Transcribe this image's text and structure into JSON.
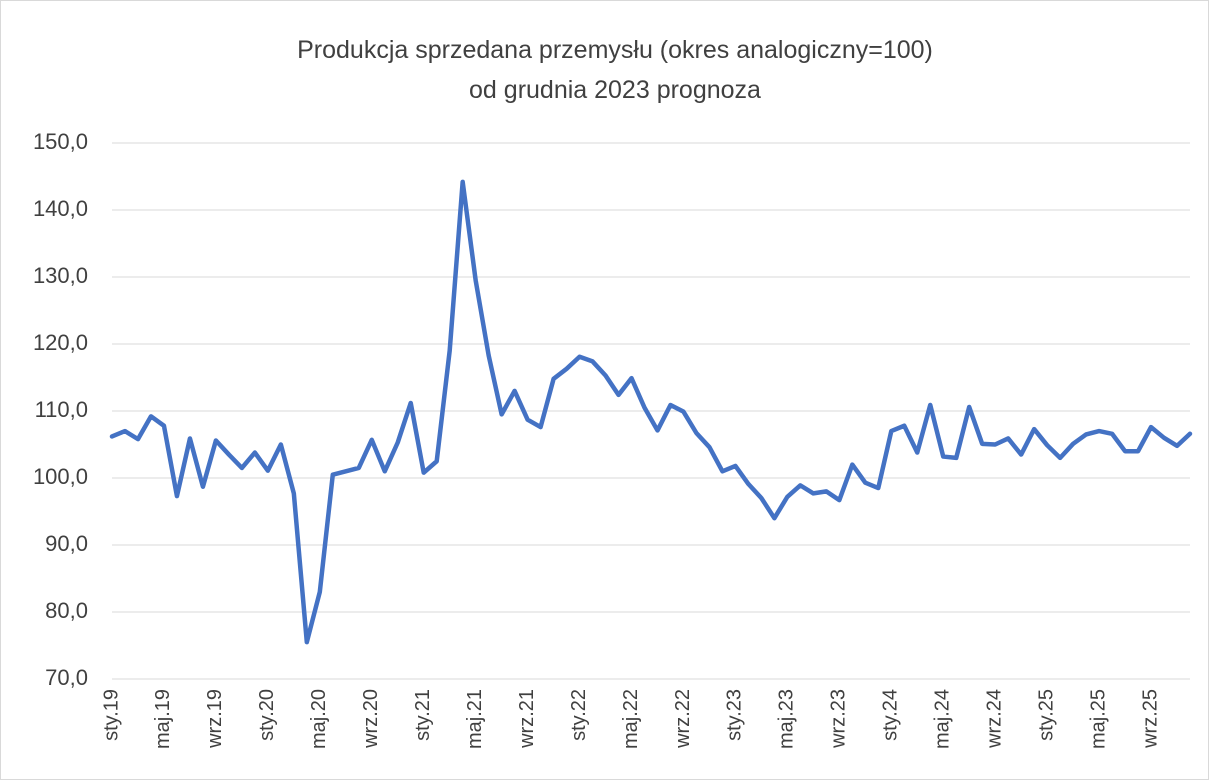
{
  "chart_data": {
    "type": "line",
    "title": "Produkcja sprzedana przemysłu (okres analogiczny=100)",
    "subtitle": "od grudnia 2023 prognoza",
    "categories": [
      "sty.19",
      null,
      null,
      null,
      "maj.19",
      null,
      null,
      null,
      "wrz.19",
      null,
      null,
      null,
      "sty.20",
      null,
      null,
      null,
      "maj.20",
      null,
      null,
      null,
      "wrz.20",
      null,
      null,
      null,
      "sty.21",
      null,
      null,
      null,
      "maj.21",
      null,
      null,
      null,
      "wrz.21",
      null,
      null,
      null,
      "sty.22",
      null,
      null,
      null,
      "maj.22",
      null,
      null,
      null,
      "wrz.22",
      null,
      null,
      null,
      "sty.23",
      null,
      null,
      null,
      "maj.23",
      null,
      null,
      null,
      "wrz.23",
      null,
      null,
      null,
      "sty.24",
      null,
      null,
      null,
      "maj.24",
      null,
      null,
      null,
      "wrz.24",
      null,
      null,
      null,
      "sty.25",
      null,
      null,
      null,
      "maj.25",
      null,
      null,
      null,
      "wrz.25",
      null,
      null,
      null
    ],
    "series": [
      {
        "name": "Produkcja sprzedana przemysłu",
        "color": "#4472c4",
        "values": [
          106.2,
          107.0,
          105.8,
          109.2,
          107.8,
          97.3,
          105.9,
          98.7,
          105.6,
          103.5,
          101.5,
          103.8,
          101.1,
          105.0,
          97.7,
          75.5,
          83.0,
          100.5,
          101.0,
          101.5,
          105.7,
          101.0,
          105.3,
          111.2,
          100.8,
          102.5,
          119.0,
          144.2,
          129.5,
          118.3,
          109.5,
          113.0,
          108.7,
          107.6,
          114.8,
          116.3,
          118.1,
          117.4,
          115.3,
          112.4,
          114.9,
          110.5,
          107.1,
          110.9,
          109.9,
          106.7,
          104.6,
          101.0,
          101.8,
          99.1,
          97.0,
          94.0,
          97.2,
          98.9,
          97.7,
          98.0,
          96.7,
          102.0,
          99.3,
          98.5,
          107.0,
          107.8,
          103.8,
          110.9,
          103.2,
          103.0,
          110.6,
          105.1,
          105.0,
          105.9,
          103.5,
          107.3,
          104.9,
          103.0,
          105.1,
          106.5,
          107.0,
          106.6,
          104.0,
          104.0,
          107.6,
          106.0,
          104.8,
          106.6
        ]
      }
    ],
    "ylim": [
      70,
      150
    ],
    "yticks": [
      {
        "value": 70,
        "label": "70,0"
      },
      {
        "value": 80,
        "label": "80,0"
      },
      {
        "value": 90,
        "label": "90,0"
      },
      {
        "value": 100,
        "label": "100,0"
      },
      {
        "value": 110,
        "label": "110,0"
      },
      {
        "value": 120,
        "label": "120,0"
      },
      {
        "value": 130,
        "label": "130,0"
      },
      {
        "value": 140,
        "label": "140,0"
      },
      {
        "value": 150,
        "label": "150,0"
      }
    ],
    "grid": true
  }
}
